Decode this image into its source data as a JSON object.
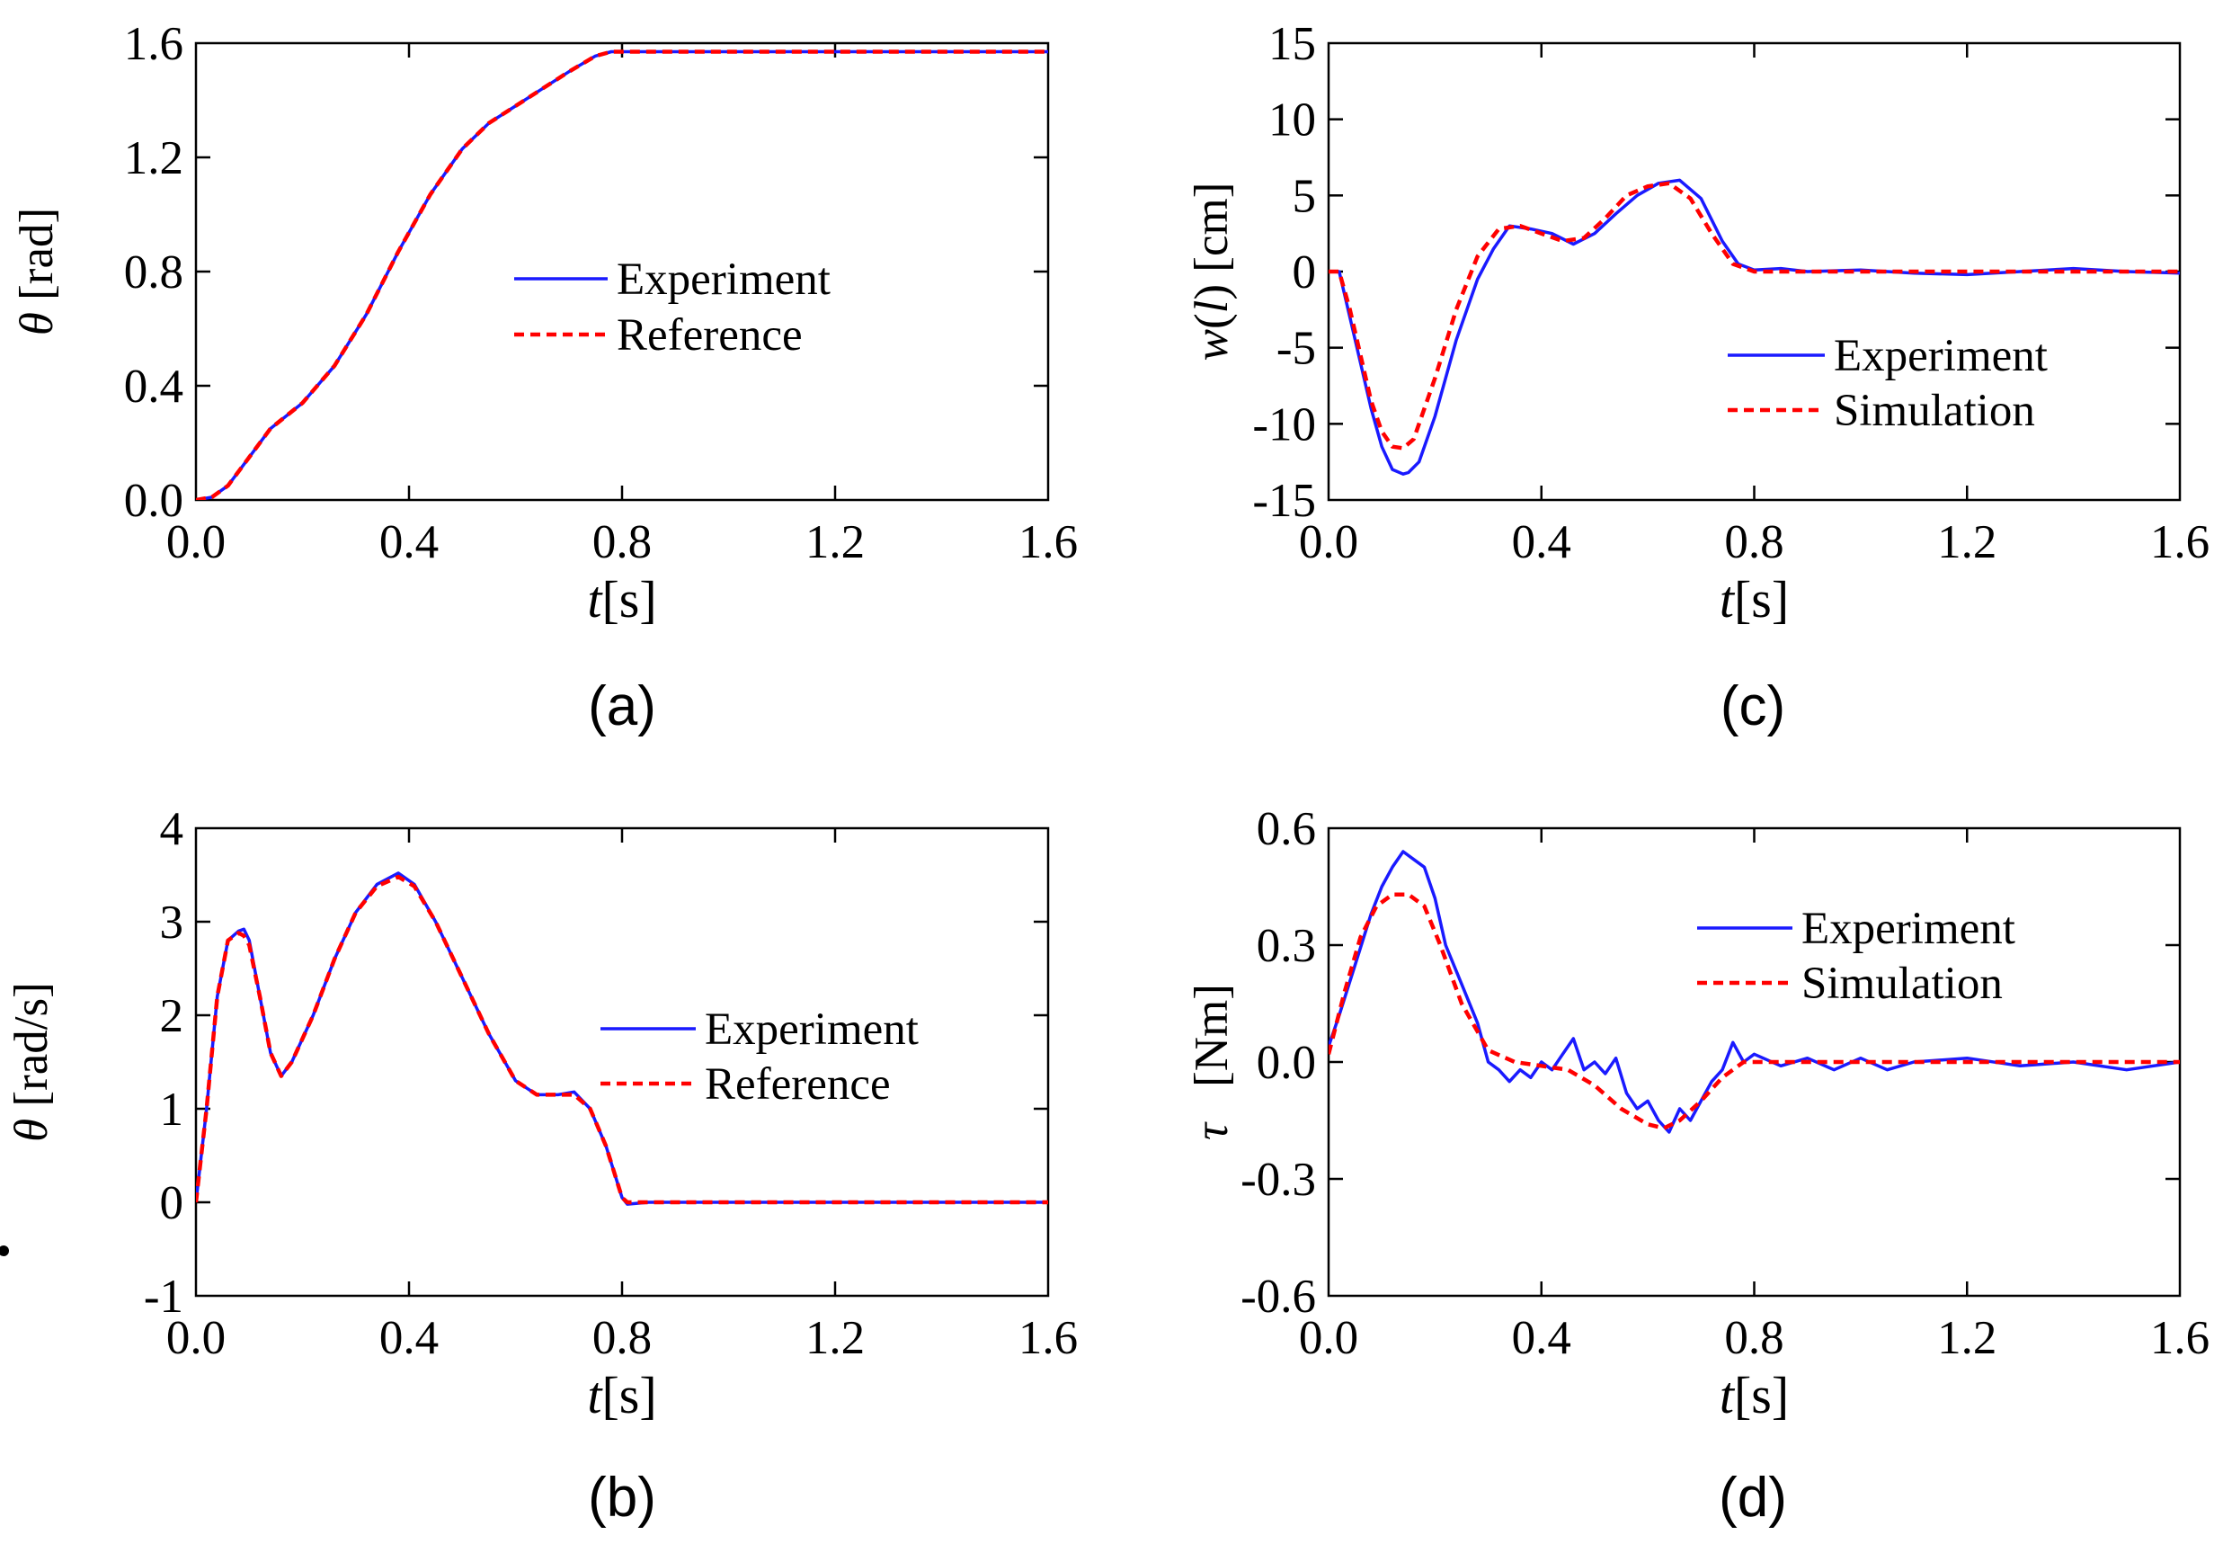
{
  "colors": {
    "experiment": "#1a1aff",
    "reference": "#ff0000",
    "axis": "#000000"
  },
  "chart_data": [
    {
      "id": "a",
      "type": "line",
      "panel_label": "(a)",
      "ylabel_symbol": "θ",
      "ylabel_unit": " [rad]",
      "xlabel_symbol": "t",
      "xlabel_unit": "[s]",
      "xlim": [
        0,
        1.6
      ],
      "ylim": [
        0,
        1.6
      ],
      "xticks": [
        "0.0",
        "0.4",
        "0.8",
        "1.2",
        "1.6"
      ],
      "yticks": [
        "0.0",
        "0.4",
        "0.8",
        "1.2",
        "1.6"
      ],
      "legend_position": "center-right",
      "series": [
        {
          "name": "Experiment",
          "style": "solid",
          "color": "#1a1aff",
          "x": [
            0,
            0.03,
            0.06,
            0.1,
            0.14,
            0.2,
            0.26,
            0.32,
            0.38,
            0.44,
            0.5,
            0.55,
            0.6,
            0.65,
            0.7,
            0.75,
            0.78,
            0.8,
            1.0,
            1.2,
            1.4,
            1.6
          ],
          "y": [
            0,
            0.01,
            0.05,
            0.15,
            0.25,
            0.34,
            0.47,
            0.65,
            0.87,
            1.07,
            1.23,
            1.32,
            1.38,
            1.44,
            1.5,
            1.555,
            1.57,
            1.57,
            1.57,
            1.57,
            1.57,
            1.57
          ]
        },
        {
          "name": "Reference",
          "style": "dashed",
          "color": "#ff0000",
          "x": [
            0,
            0.03,
            0.06,
            0.1,
            0.14,
            0.2,
            0.26,
            0.32,
            0.38,
            0.44,
            0.5,
            0.55,
            0.6,
            0.65,
            0.7,
            0.75,
            0.78,
            0.8,
            1.0,
            1.2,
            1.4,
            1.6
          ],
          "y": [
            0,
            0.01,
            0.05,
            0.15,
            0.25,
            0.34,
            0.47,
            0.65,
            0.87,
            1.07,
            1.23,
            1.32,
            1.38,
            1.44,
            1.5,
            1.555,
            1.57,
            1.57,
            1.57,
            1.57,
            1.57,
            1.57
          ]
        }
      ]
    },
    {
      "id": "b",
      "type": "line",
      "panel_label": "(b)",
      "ylabel_symbol": "θ",
      "ylabel_unit": " [rad/s]",
      "ylabel_dot": true,
      "xlabel_symbol": "t",
      "xlabel_unit": "[s]",
      "xlim": [
        0,
        1.6
      ],
      "ylim": [
        -1,
        4
      ],
      "xticks": [
        "0.0",
        "0.4",
        "0.8",
        "1.2",
        "1.6"
      ],
      "yticks": [
        "-1",
        "0",
        "1",
        "2",
        "3",
        "4"
      ],
      "legend_position": "center-right",
      "series": [
        {
          "name": "Experiment",
          "style": "solid",
          "color": "#1a1aff",
          "x": [
            0,
            0.02,
            0.04,
            0.06,
            0.08,
            0.09,
            0.1,
            0.12,
            0.14,
            0.16,
            0.18,
            0.22,
            0.26,
            0.3,
            0.34,
            0.38,
            0.41,
            0.45,
            0.5,
            0.55,
            0.6,
            0.64,
            0.68,
            0.71,
            0.74,
            0.77,
            0.8,
            0.81,
            0.85,
            1.0,
            1.2,
            1.4,
            1.6
          ],
          "y": [
            0,
            1.0,
            2.2,
            2.8,
            2.9,
            2.92,
            2.8,
            2.2,
            1.6,
            1.35,
            1.5,
            2.0,
            2.6,
            3.1,
            3.4,
            3.52,
            3.4,
            3.0,
            2.4,
            1.8,
            1.3,
            1.15,
            1.15,
            1.18,
            1.0,
            0.6,
            0.05,
            -0.02,
            0,
            0,
            0,
            0,
            0
          ]
        },
        {
          "name": "Reference",
          "style": "dashed",
          "color": "#ff0000",
          "x": [
            0,
            0.02,
            0.04,
            0.06,
            0.08,
            0.09,
            0.1,
            0.12,
            0.14,
            0.16,
            0.18,
            0.22,
            0.26,
            0.3,
            0.34,
            0.38,
            0.41,
            0.45,
            0.5,
            0.55,
            0.6,
            0.64,
            0.68,
            0.71,
            0.74,
            0.77,
            0.8,
            0.81,
            0.85,
            1.0,
            1.2,
            1.4,
            1.6
          ],
          "y": [
            0,
            1.0,
            2.2,
            2.8,
            2.88,
            2.85,
            2.75,
            2.2,
            1.6,
            1.35,
            1.5,
            2.0,
            2.6,
            3.1,
            3.38,
            3.48,
            3.38,
            3.0,
            2.4,
            1.8,
            1.3,
            1.15,
            1.15,
            1.15,
            1.0,
            0.6,
            0.05,
            0,
            0,
            0,
            0,
            0,
            0
          ]
        }
      ]
    },
    {
      "id": "c",
      "type": "line",
      "panel_label": "(c)",
      "ylabel_symbol": "w",
      "ylabel_unit": " [cm]",
      "ylabel_paren_l": "(",
      "ylabel_inner": "l",
      "ylabel_paren_r": ")",
      "xlabel_symbol": "t",
      "xlabel_unit": "[s]",
      "xlim": [
        0,
        1.6
      ],
      "ylim": [
        -15,
        15
      ],
      "xticks": [
        "0.0",
        "0.4",
        "0.8",
        "1.2",
        "1.6"
      ],
      "yticks": [
        "-15",
        "-10",
        "-5",
        "0",
        "5",
        "10",
        "15"
      ],
      "legend_position": "lower-right",
      "series": [
        {
          "name": "Experiment",
          "style": "solid",
          "color": "#1a1aff",
          "x": [
            0,
            0.02,
            0.04,
            0.06,
            0.08,
            0.1,
            0.12,
            0.14,
            0.15,
            0.17,
            0.2,
            0.24,
            0.28,
            0.31,
            0.34,
            0.38,
            0.42,
            0.46,
            0.5,
            0.54,
            0.58,
            0.62,
            0.66,
            0.7,
            0.74,
            0.77,
            0.8,
            0.85,
            0.9,
            1.0,
            1.1,
            1.2,
            1.3,
            1.4,
            1.5,
            1.6
          ],
          "y": [
            0,
            0,
            -3,
            -6,
            -9,
            -11.5,
            -13,
            -13.3,
            -13.2,
            -12.5,
            -9.5,
            -4.5,
            -0.5,
            1.5,
            3.0,
            2.8,
            2.5,
            1.8,
            2.5,
            3.8,
            5.0,
            5.8,
            6.0,
            4.8,
            2.0,
            0.5,
            0.1,
            0.2,
            0,
            0.1,
            -0.1,
            -0.2,
            0,
            0.2,
            0,
            -0.1
          ]
        },
        {
          "name": "Simulation",
          "style": "dashed",
          "color": "#ff0000",
          "x": [
            0,
            0.02,
            0.04,
            0.06,
            0.08,
            0.1,
            0.12,
            0.14,
            0.16,
            0.2,
            0.24,
            0.28,
            0.32,
            0.36,
            0.4,
            0.44,
            0.48,
            0.52,
            0.56,
            0.6,
            0.64,
            0.68,
            0.72,
            0.76,
            0.8,
            0.9,
            1.0,
            1.2,
            1.4,
            1.6
          ],
          "y": [
            0,
            0,
            -2.5,
            -5.5,
            -8.5,
            -10.5,
            -11.5,
            -11.6,
            -11.0,
            -7.0,
            -2.5,
            1.0,
            2.8,
            3.0,
            2.5,
            2.0,
            2.2,
            3.5,
            5.0,
            5.6,
            5.8,
            4.8,
            2.5,
            0.5,
            0,
            0,
            0,
            0,
            0,
            0
          ]
        }
      ]
    },
    {
      "id": "d",
      "type": "line",
      "panel_label": "(d)",
      "ylabel_symbol": "τ",
      "ylabel_unit": "[Nm]",
      "xlabel_symbol": "t",
      "xlabel_unit": "[s]",
      "xlim": [
        0,
        1.6
      ],
      "ylim": [
        -0.6,
        0.6
      ],
      "xticks": [
        "0.0",
        "0.4",
        "0.8",
        "1.2",
        "1.6"
      ],
      "yticks": [
        "-0.6",
        "-0.3",
        "0.0",
        "0.3",
        "0.6"
      ],
      "legend_position": "upper-right",
      "series": [
        {
          "name": "Experiment",
          "style": "solid",
          "color": "#1a1aff",
          "x": [
            0,
            0.02,
            0.05,
            0.08,
            0.1,
            0.12,
            0.14,
            0.16,
            0.18,
            0.2,
            0.22,
            0.25,
            0.28,
            0.3,
            0.32,
            0.34,
            0.36,
            0.38,
            0.4,
            0.42,
            0.44,
            0.46,
            0.48,
            0.5,
            0.52,
            0.54,
            0.56,
            0.58,
            0.6,
            0.62,
            0.64,
            0.66,
            0.68,
            0.7,
            0.72,
            0.74,
            0.76,
            0.78,
            0.8,
            0.85,
            0.9,
            0.95,
            1.0,
            1.05,
            1.1,
            1.2,
            1.3,
            1.4,
            1.5,
            1.6
          ],
          "y": [
            0.04,
            0.12,
            0.25,
            0.38,
            0.45,
            0.5,
            0.54,
            0.52,
            0.5,
            0.42,
            0.3,
            0.2,
            0.1,
            0.0,
            -0.02,
            -0.05,
            -0.02,
            -0.04,
            0.0,
            -0.02,
            0.02,
            0.06,
            -0.02,
            0.0,
            -0.03,
            0.01,
            -0.08,
            -0.12,
            -0.1,
            -0.15,
            -0.18,
            -0.12,
            -0.15,
            -0.1,
            -0.05,
            -0.02,
            0.05,
            0.0,
            0.02,
            -0.01,
            0.01,
            -0.02,
            0.01,
            -0.02,
            0.0,
            0.01,
            -0.01,
            0.0,
            -0.02,
            0.0
          ]
        },
        {
          "name": "Simulation",
          "style": "dashed",
          "color": "#ff0000",
          "x": [
            0,
            0.03,
            0.06,
            0.09,
            0.12,
            0.15,
            0.18,
            0.21,
            0.25,
            0.3,
            0.35,
            0.4,
            0.45,
            0.5,
            0.55,
            0.6,
            0.63,
            0.66,
            0.7,
            0.74,
            0.78,
            0.8,
            0.9,
            1.0,
            1.2,
            1.4,
            1.6
          ],
          "y": [
            0.02,
            0.18,
            0.32,
            0.4,
            0.43,
            0.43,
            0.4,
            0.3,
            0.15,
            0.03,
            0.0,
            -0.01,
            -0.02,
            -0.06,
            -0.12,
            -0.16,
            -0.17,
            -0.15,
            -0.1,
            -0.04,
            0.0,
            0.0,
            0.0,
            0.0,
            0.0,
            0.0,
            0.0
          ]
        }
      ]
    }
  ]
}
